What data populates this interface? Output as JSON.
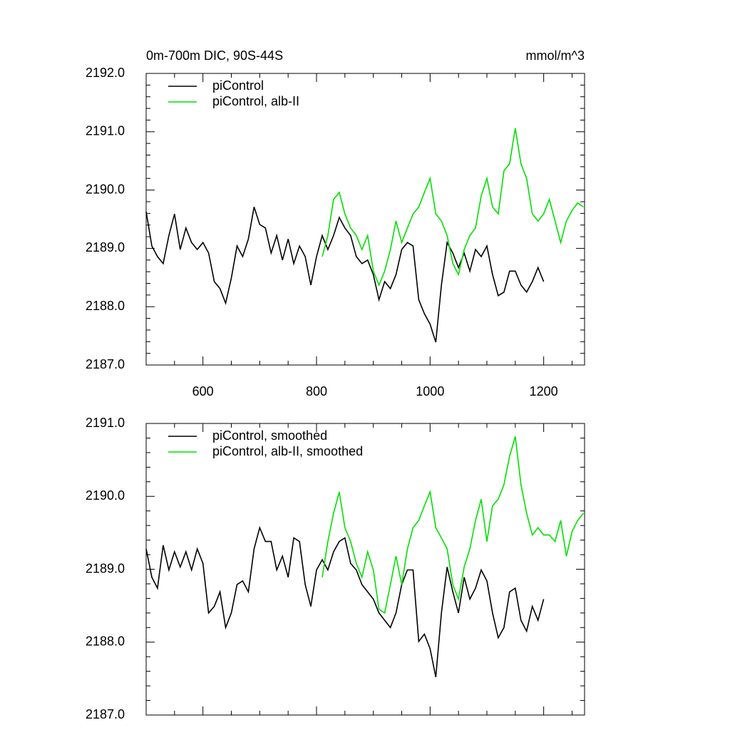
{
  "chart_data": [
    {
      "type": "line",
      "title": "0m-700m DIC, 90S-44S",
      "units": "mmol/m^3",
      "x": [
        500,
        510,
        520,
        530,
        540,
        550,
        560,
        570,
        580,
        590,
        600,
        610,
        620,
        630,
        640,
        650,
        660,
        670,
        680,
        690,
        700,
        710,
        720,
        730,
        740,
        750,
        760,
        770,
        780,
        790,
        800,
        810,
        820,
        830,
        840,
        850,
        860,
        870,
        880,
        890,
        900,
        910,
        920,
        930,
        940,
        950,
        960,
        970,
        980,
        990,
        1000,
        1010,
        1020,
        1030,
        1040,
        1050,
        1060,
        1070,
        1080,
        1090,
        1100,
        1110,
        1120,
        1130,
        1140,
        1150,
        1160,
        1170,
        1180,
        1190,
        1200,
        1210,
        1220,
        1230,
        1240,
        1250,
        1260,
        1270
      ],
      "series": [
        {
          "name": "piControl",
          "color": "#000000",
          "values": [
            2189.63,
            2189.04,
            2188.86,
            2188.74,
            2189.22,
            2189.59,
            2188.98,
            2189.35,
            2189.1,
            2188.98,
            2189.1,
            2188.92,
            2188.43,
            2188.31,
            2188.06,
            2188.49,
            2189.04,
            2188.86,
            2189.16,
            2189.71,
            2189.41,
            2189.35,
            2188.92,
            2189.22,
            2188.8,
            2189.16,
            2188.74,
            2189.04,
            2188.86,
            2188.37,
            2188.86,
            2189.22,
            2188.98,
            2189.22,
            2189.53,
            2189.35,
            2189.22,
            2188.86,
            2188.74,
            2188.8,
            2188.55,
            2188.12,
            2188.43,
            2188.31,
            2188.55,
            2188.98,
            2189.1,
            2189.04,
            2188.12,
            2187.88,
            2187.7,
            2187.39,
            2188.37,
            2189.1,
            2188.92,
            2188.67,
            2188.92,
            2188.61,
            2188.98,
            2188.86,
            2189.04,
            2188.55,
            2188.19,
            2188.25,
            2188.61,
            2188.61,
            2188.37,
            2188.25,
            2188.43,
            2188.67,
            2188.43,
            null,
            null,
            null,
            null,
            null,
            null,
            null
          ]
        },
        {
          "name": "piControl, alb-II",
          "color": "#00e000",
          "values": [
            null,
            null,
            null,
            null,
            null,
            null,
            null,
            null,
            null,
            null,
            null,
            null,
            null,
            null,
            null,
            null,
            null,
            null,
            null,
            null,
            null,
            null,
            null,
            null,
            null,
            null,
            null,
            null,
            null,
            null,
            null,
            2188.86,
            2189.22,
            2189.84,
            2189.96,
            2189.59,
            2189.35,
            2189.22,
            2188.98,
            2189.22,
            2188.61,
            2188.37,
            2188.61,
            2188.98,
            2189.47,
            2189.1,
            2189.35,
            2189.59,
            2189.71,
            2189.96,
            2190.2,
            2189.59,
            2189.47,
            2189.22,
            2188.74,
            2188.55,
            2188.98,
            2189.22,
            2189.35,
            2189.9,
            2190.2,
            2189.71,
            2189.59,
            2190.33,
            2190.45,
            2191.06,
            2190.45,
            2190.2,
            2189.59,
            2189.47,
            2189.59,
            2189.84,
            2189.47,
            2189.1,
            2189.47,
            2189.65,
            2189.78,
            2189.71
          ]
        }
      ],
      "xlim": [
        500,
        1272
      ],
      "ylim": [
        2187,
        2192
      ],
      "xticks": [
        600,
        800,
        1000,
        1200
      ],
      "show_xtick_labels": true,
      "yticks": [
        {
          "value": 2187,
          "label": "2187.0"
        },
        {
          "value": 2188,
          "label": "2188.0"
        },
        {
          "value": 2189,
          "label": "2189.0"
        },
        {
          "value": 2190,
          "label": "2190.0"
        },
        {
          "value": 2191,
          "label": "2191.0"
        },
        {
          "value": 2192,
          "label": "2192.0"
        }
      ]
    },
    {
      "type": "line",
      "x": [
        500,
        510,
        520,
        530,
        540,
        550,
        560,
        570,
        580,
        590,
        600,
        610,
        620,
        630,
        640,
        650,
        660,
        670,
        680,
        690,
        700,
        710,
        720,
        730,
        740,
        750,
        760,
        770,
        780,
        790,
        800,
        810,
        820,
        830,
        840,
        850,
        860,
        870,
        880,
        890,
        900,
        910,
        920,
        930,
        940,
        950,
        960,
        970,
        980,
        990,
        1000,
        1010,
        1020,
        1030,
        1040,
        1050,
        1060,
        1070,
        1080,
        1090,
        1100,
        1110,
        1120,
        1130,
        1140,
        1150,
        1160,
        1170,
        1180,
        1190,
        1200,
        1210,
        1220,
        1230,
        1240,
        1250,
        1260,
        1270
      ],
      "series": [
        {
          "name": "piControl, smoothed",
          "color": "#000000",
          "values": [
            2189.28,
            2188.89,
            2188.74,
            2189.33,
            2188.99,
            2189.24,
            2189.03,
            2189.24,
            2188.99,
            2189.28,
            2189.08,
            2188.4,
            2188.49,
            2188.69,
            2188.2,
            2188.4,
            2188.79,
            2188.84,
            2188.69,
            2189.28,
            2189.57,
            2189.38,
            2189.38,
            2188.99,
            2189.18,
            2188.89,
            2189.43,
            2189.38,
            2188.79,
            2188.49,
            2188.99,
            2189.13,
            2188.99,
            2189.24,
            2189.38,
            2189.43,
            2189.08,
            2188.99,
            2188.79,
            2188.69,
            2188.59,
            2188.4,
            2188.3,
            2188.2,
            2188.4,
            2188.79,
            2188.99,
            2188.99,
            2188.01,
            2188.11,
            2187.91,
            2187.52,
            2188.4,
            2189.03,
            2188.69,
            2188.4,
            2188.89,
            2188.59,
            2188.74,
            2188.99,
            2188.84,
            2188.4,
            2188.06,
            2188.2,
            2188.69,
            2188.74,
            2188.3,
            2188.15,
            2188.49,
            2188.3,
            2188.59,
            null,
            null,
            null,
            null,
            null,
            null,
            null
          ]
        },
        {
          "name": "piControl, alb-II, smoothed",
          "color": "#00e000",
          "values": [
            null,
            null,
            null,
            null,
            null,
            null,
            null,
            null,
            null,
            null,
            null,
            null,
            null,
            null,
            null,
            null,
            null,
            null,
            null,
            null,
            null,
            null,
            null,
            null,
            null,
            null,
            null,
            null,
            null,
            null,
            null,
            2188.89,
            2189.38,
            2189.77,
            2190.06,
            2189.57,
            2189.38,
            2189.08,
            2188.89,
            2189.24,
            2188.99,
            2188.45,
            2188.4,
            2188.79,
            2189.18,
            2188.79,
            2189.28,
            2189.57,
            2189.67,
            2189.87,
            2190.06,
            2189.57,
            2189.43,
            2189.28,
            2188.79,
            2188.59,
            2189.03,
            2189.28,
            2189.67,
            2189.96,
            2189.38,
            2189.87,
            2189.96,
            2190.16,
            2190.55,
            2190.82,
            2190.16,
            2189.77,
            2189.47,
            2189.57,
            2189.47,
            2189.47,
            2189.38,
            2189.67,
            2189.18,
            2189.52,
            2189.67,
            2189.77
          ]
        }
      ],
      "xlim": [
        500,
        1272
      ],
      "ylim": [
        2187,
        2191
      ],
      "xticks": [
        600,
        800,
        1000,
        1200
      ],
      "show_xtick_labels": false,
      "yticks": [
        {
          "value": 2187,
          "label": "2187.0"
        },
        {
          "value": 2188,
          "label": "2188.0"
        },
        {
          "value": 2189,
          "label": "2189.0"
        },
        {
          "value": 2190,
          "label": "2190.0"
        },
        {
          "value": 2191,
          "label": "2191.0"
        }
      ]
    }
  ]
}
